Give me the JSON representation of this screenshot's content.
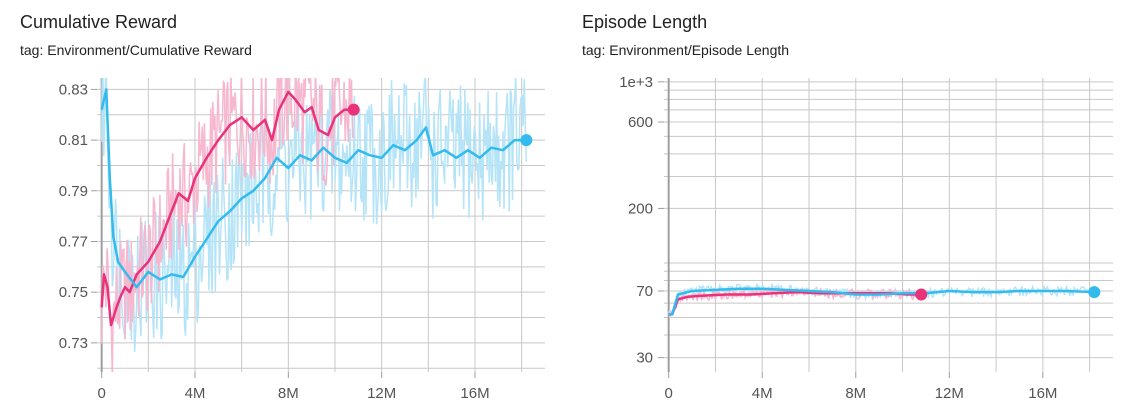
{
  "charts": [
    {
      "title": "Cumulative Reward",
      "tag": "tag: Environment/Cumulative Reward"
    },
    {
      "title": "Episode Length",
      "tag": "tag: Environment/Episode Length"
    }
  ],
  "colors": {
    "pink_line": "#e8337a",
    "pink_raw": "#f7b7cf",
    "blue_line": "#33bbee",
    "blue_raw": "#b5e4f8",
    "grid": "#c8c8c8",
    "axis": "#9e9e9e"
  },
  "chart_data": [
    {
      "type": "line",
      "title": "Cumulative Reward",
      "xlabel": "",
      "ylabel": "",
      "x_unit": "steps",
      "xlim": [
        -200000,
        19000000
      ],
      "ylim": [
        0.7185,
        0.8345
      ],
      "x_ticks": [
        {
          "value": 0,
          "label": "0"
        },
        {
          "value": 4000000,
          "label": "4M"
        },
        {
          "value": 8000000,
          "label": "8M"
        },
        {
          "value": 12000000,
          "label": "12M"
        },
        {
          "value": 16000000,
          "label": "16M"
        }
      ],
      "y_ticks": [
        {
          "value": 0.73,
          "label": "0.73"
        },
        {
          "value": 0.75,
          "label": "0.75"
        },
        {
          "value": 0.77,
          "label": "0.77"
        },
        {
          "value": 0.79,
          "label": "0.79"
        },
        {
          "value": 0.81,
          "label": "0.81"
        },
        {
          "value": 0.83,
          "label": "0.83"
        }
      ],
      "grid": true,
      "series": [
        {
          "color": "#e8337a",
          "points": [
            [
              0.0,
              0.744
            ],
            [
              0.1,
              0.757
            ],
            [
              0.25,
              0.752
            ],
            [
              0.4,
              0.737
            ],
            [
              0.6,
              0.743
            ],
            [
              0.8,
              0.748
            ],
            [
              1.0,
              0.752
            ],
            [
              1.2,
              0.75
            ],
            [
              1.5,
              0.757
            ],
            [
              2.0,
              0.762
            ],
            [
              2.5,
              0.77
            ],
            [
              3.0,
              0.782
            ],
            [
              3.3,
              0.789
            ],
            [
              3.7,
              0.786
            ],
            [
              4.0,
              0.795
            ],
            [
              4.5,
              0.803
            ],
            [
              5.0,
              0.81
            ],
            [
              5.5,
              0.816
            ],
            [
              6.0,
              0.819
            ],
            [
              6.5,
              0.814
            ],
            [
              7.0,
              0.818
            ],
            [
              7.3,
              0.81
            ],
            [
              7.6,
              0.822
            ],
            [
              8.0,
              0.829
            ],
            [
              8.3,
              0.826
            ],
            [
              8.7,
              0.821
            ],
            [
              9.0,
              0.823
            ],
            [
              9.3,
              0.814
            ],
            [
              9.7,
              0.812
            ],
            [
              10.0,
              0.819
            ],
            [
              10.4,
              0.822
            ],
            [
              10.8,
              0.822
            ]
          ],
          "end_marker": [
            10.8,
            0.822
          ]
        },
        {
          "color": "#33bbee",
          "points": [
            [
              0.0,
              0.822
            ],
            [
              0.2,
              0.83
            ],
            [
              0.35,
              0.795
            ],
            [
              0.5,
              0.772
            ],
            [
              0.7,
              0.762
            ],
            [
              1.0,
              0.758
            ],
            [
              1.5,
              0.752
            ],
            [
              2.0,
              0.758
            ],
            [
              2.5,
              0.755
            ],
            [
              3.0,
              0.757
            ],
            [
              3.5,
              0.756
            ],
            [
              4.0,
              0.764
            ],
            [
              4.5,
              0.771
            ],
            [
              5.0,
              0.778
            ],
            [
              5.5,
              0.782
            ],
            [
              6.0,
              0.787
            ],
            [
              6.5,
              0.79
            ],
            [
              7.0,
              0.795
            ],
            [
              7.5,
              0.803
            ],
            [
              8.0,
              0.799
            ],
            [
              8.5,
              0.804
            ],
            [
              9.0,
              0.802
            ],
            [
              9.5,
              0.807
            ],
            [
              10.0,
              0.803
            ],
            [
              10.5,
              0.801
            ],
            [
              11.0,
              0.806
            ],
            [
              11.5,
              0.804
            ],
            [
              12.0,
              0.803
            ],
            [
              12.5,
              0.808
            ],
            [
              13.0,
              0.806
            ],
            [
              13.5,
              0.81
            ],
            [
              13.9,
              0.815
            ],
            [
              14.2,
              0.804
            ],
            [
              14.7,
              0.806
            ],
            [
              15.2,
              0.803
            ],
            [
              15.7,
              0.806
            ],
            [
              16.2,
              0.803
            ],
            [
              16.7,
              0.807
            ],
            [
              17.2,
              0.806
            ],
            [
              17.7,
              0.81
            ],
            [
              18.2,
              0.81
            ]
          ],
          "end_marker": [
            18.2,
            0.81
          ]
        }
      ]
    },
    {
      "type": "line",
      "title": "Episode Length",
      "xlabel": "",
      "ylabel": "",
      "x_unit": "steps",
      "y_scale": "log",
      "xlim": [
        -200000,
        19000000
      ],
      "ylim": [
        25,
        1050
      ],
      "x_ticks": [
        {
          "value": 0,
          "label": "0"
        },
        {
          "value": 4000000,
          "label": "4M"
        },
        {
          "value": 8000000,
          "label": "8M"
        },
        {
          "value": 12000000,
          "label": "12M"
        },
        {
          "value": 16000000,
          "label": "16M"
        }
      ],
      "y_ticks": [
        {
          "value": 30,
          "label": "30"
        },
        {
          "value": 70,
          "label": "70"
        },
        {
          "value": 200,
          "label": "200"
        },
        {
          "value": 600,
          "label": "600"
        },
        {
          "value": 1000,
          "label": "1e+3"
        }
      ],
      "grid": true,
      "series": [
        {
          "color": "#e8337a",
          "points": [
            [
              0.0,
              52
            ],
            [
              0.15,
              52
            ],
            [
              0.4,
              63
            ],
            [
              0.8,
              65
            ],
            [
              1.5,
              66
            ],
            [
              2.5,
              67
            ],
            [
              3.5,
              67
            ],
            [
              4.5,
              68
            ],
            [
              5.5,
              69
            ],
            [
              6.5,
              68
            ],
            [
              7.5,
              68
            ],
            [
              8.5,
              68
            ],
            [
              9.5,
              68
            ],
            [
              10.2,
              67
            ],
            [
              10.8,
              67
            ]
          ],
          "end_marker": [
            10.8,
            67
          ]
        },
        {
          "color": "#33bbee",
          "points": [
            [
              0.0,
              52
            ],
            [
              0.15,
              52
            ],
            [
              0.4,
              67
            ],
            [
              1.0,
              70
            ],
            [
              2.0,
              71
            ],
            [
              3.0,
              72
            ],
            [
              4.0,
              72
            ],
            [
              5.0,
              71
            ],
            [
              6.0,
              70
            ],
            [
              7.0,
              69
            ],
            [
              8.0,
              67
            ],
            [
              9.0,
              67
            ],
            [
              10.0,
              68
            ],
            [
              11.0,
              68
            ],
            [
              12.0,
              70
            ],
            [
              13.0,
              69
            ],
            [
              14.0,
              69
            ],
            [
              15.0,
              70
            ],
            [
              16.0,
              70
            ],
            [
              17.0,
              70
            ],
            [
              18.2,
              69
            ]
          ],
          "end_marker": [
            18.2,
            69
          ]
        }
      ]
    }
  ]
}
